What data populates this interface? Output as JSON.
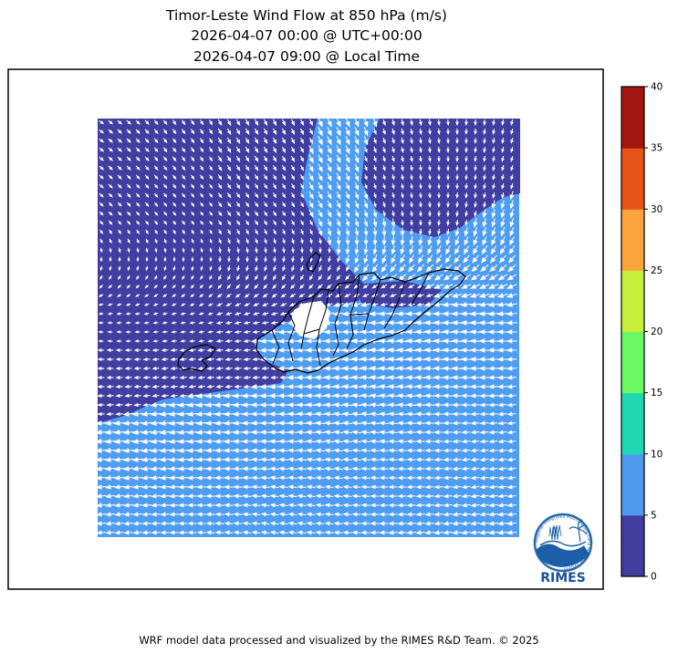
{
  "title": {
    "line1": "Timor-Leste Wind Flow at 850 hPa (m/s)",
    "line2": "2026-04-07 00:00 @ UTC+00:00",
    "line3": "2026-04-07 09:00 @ Local Time"
  },
  "footer": "WRF model data processed and visualized by the RIMES R&D Team. © 2025",
  "colorbar": {
    "units": "m/s",
    "min": 0,
    "max": 40,
    "ticks": [
      0,
      5,
      10,
      15,
      20,
      25,
      30,
      35,
      40
    ],
    "colors": [
      "#3f3d9e",
      "#4d9bf1",
      "#21d7b2",
      "#6bfa63",
      "#c6ee3a",
      "#fca43c",
      "#e65217",
      "#a21511"
    ],
    "level_labels": [
      "0-5",
      "5-10",
      "10-15",
      "15-20",
      "20-25",
      "25-30",
      "30-35",
      "35-40"
    ]
  },
  "map": {
    "sea_low_color": "#4f9df2",
    "calm_color": "#403ea0",
    "arrow_color": "#ffffff",
    "outline_color": "#000000",
    "masked_color": "#ffffff",
    "frame_color": "#000000",
    "visible_speed_regions": [
      "wind-speed-0-5",
      "wind-speed-5-10"
    ]
  },
  "logo": {
    "name": "RIMES",
    "ring_text": "Regional Integrated Multi-Hazard Early Warning System",
    "text_color": "#1a4f9c",
    "ring_color": "#2a6bb0"
  }
}
